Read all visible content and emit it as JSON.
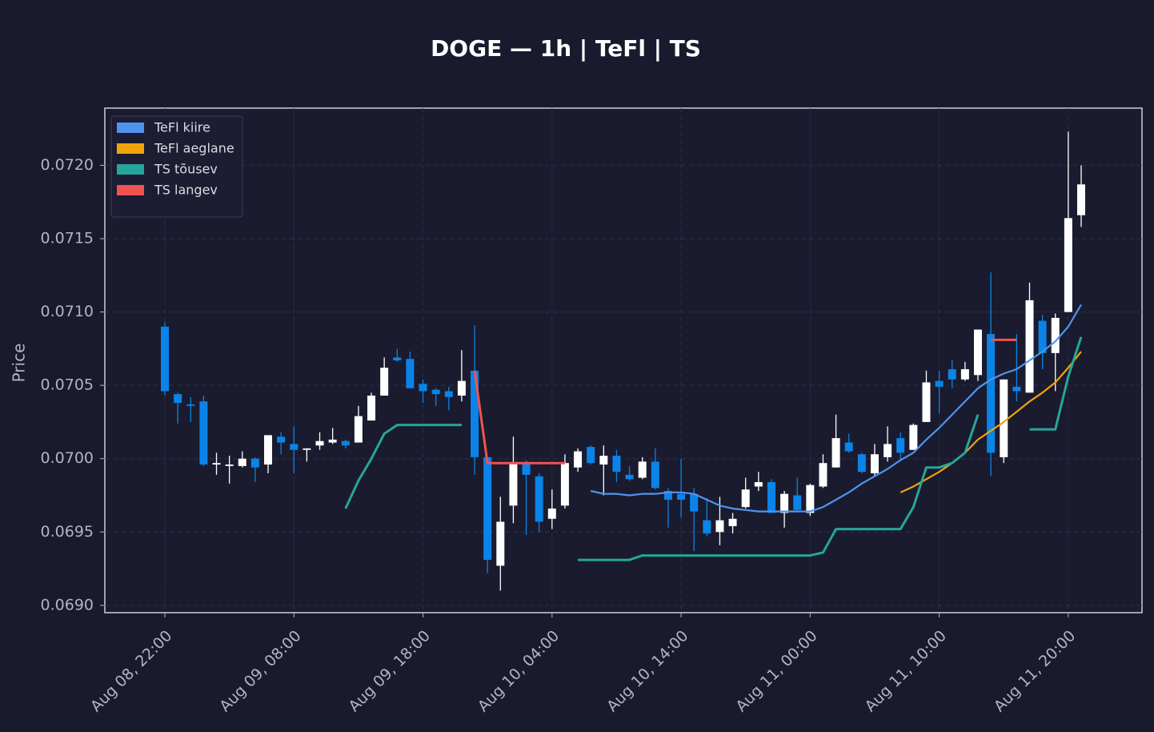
{
  "chart_data": {
    "type": "candlestick",
    "title": "DOGE — 1h  |  TeFl  |  TS",
    "y_label": "Price",
    "x": [
      "Aug 08, 22:00",
      "Aug 08, 23:00",
      "Aug 09, 00:00",
      "Aug 09, 01:00",
      "Aug 09, 02:00",
      "Aug 09, 03:00",
      "Aug 09, 04:00",
      "Aug 09, 05:00",
      "Aug 09, 06:00",
      "Aug 09, 07:00",
      "Aug 09, 08:00",
      "Aug 09, 09:00",
      "Aug 09, 10:00",
      "Aug 09, 11:00",
      "Aug 09, 12:00",
      "Aug 09, 13:00",
      "Aug 09, 14:00",
      "Aug 09, 15:00",
      "Aug 09, 16:00",
      "Aug 09, 17:00",
      "Aug 09, 18:00",
      "Aug 09, 19:00",
      "Aug 09, 20:00",
      "Aug 09, 21:00",
      "Aug 09, 22:00",
      "Aug 09, 23:00",
      "Aug 10, 00:00",
      "Aug 10, 01:00",
      "Aug 10, 02:00",
      "Aug 10, 03:00",
      "Aug 10, 04:00",
      "Aug 10, 05:00",
      "Aug 10, 06:00",
      "Aug 10, 07:00",
      "Aug 10, 08:00",
      "Aug 10, 09:00",
      "Aug 10, 10:00",
      "Aug 10, 11:00",
      "Aug 10, 12:00",
      "Aug 10, 13:00",
      "Aug 10, 14:00",
      "Aug 10, 15:00",
      "Aug 10, 16:00",
      "Aug 10, 17:00",
      "Aug 10, 18:00",
      "Aug 10, 19:00",
      "Aug 10, 20:00",
      "Aug 10, 21:00",
      "Aug 10, 22:00",
      "Aug 10, 23:00",
      "Aug 11, 00:00",
      "Aug 11, 01:00",
      "Aug 11, 02:00",
      "Aug 11, 03:00",
      "Aug 11, 04:00",
      "Aug 11, 05:00",
      "Aug 11, 06:00",
      "Aug 11, 07:00",
      "Aug 11, 08:00",
      "Aug 11, 09:00",
      "Aug 11, 10:00",
      "Aug 11, 11:00",
      "Aug 11, 12:00",
      "Aug 11, 13:00",
      "Aug 11, 14:00",
      "Aug 11, 15:00",
      "Aug 11, 16:00",
      "Aug 11, 17:00",
      "Aug 11, 18:00",
      "Aug 11, 19:00",
      "Aug 11, 20:00",
      "Aug 11, 21:00"
    ],
    "open": [
      0.0709,
      0.07044,
      0.07037,
      0.07039,
      0.06996,
      0.06995,
      0.06995,
      0.07,
      0.06996,
      0.07015,
      0.0701,
      0.07006,
      0.07009,
      0.07011,
      0.07012,
      0.07011,
      0.07026,
      0.07043,
      0.07069,
      0.07068,
      0.07051,
      0.07047,
      0.07046,
      0.07043,
      0.0706,
      0.07001,
      0.06927,
      0.06968,
      0.06997,
      0.06988,
      0.06959,
      0.06968,
      0.06994,
      0.07008,
      0.06996,
      0.07002,
      0.06989,
      0.06987,
      0.06998,
      0.06978,
      0.06976,
      0.06976,
      0.06958,
      0.0695,
      0.06954,
      0.06967,
      0.06981,
      0.06984,
      0.06963,
      0.06975,
      0.06963,
      0.06981,
      0.06994,
      0.07011,
      0.07003,
      0.0699,
      0.07001,
      0.07014,
      0.07006,
      0.07025,
      0.07053,
      0.07061,
      0.07054,
      0.07057,
      0.07085,
      0.07001,
      0.07049,
      0.07045,
      0.07094,
      0.07072,
      0.071,
      0.07166
    ],
    "high": [
      0.07093,
      0.07045,
      0.07042,
      0.07043,
      0.07004,
      0.07002,
      0.07005,
      0.07001,
      0.07016,
      0.07018,
      0.07022,
      0.07007,
      0.07018,
      0.07021,
      0.07013,
      0.07036,
      0.07045,
      0.07069,
      0.07075,
      0.07073,
      0.07054,
      0.07048,
      0.07049,
      0.07074,
      0.07091,
      0.07001,
      0.06974,
      0.07015,
      0.06999,
      0.0699,
      0.06979,
      0.07003,
      0.07007,
      0.07009,
      0.07009,
      0.07006,
      0.06995,
      0.07001,
      0.07007,
      0.0698,
      0.07,
      0.0698,
      0.06973,
      0.06974,
      0.06963,
      0.06987,
      0.06991,
      0.06986,
      0.06978,
      0.06987,
      0.06983,
      0.07003,
      0.0703,
      0.07017,
      0.07004,
      0.0701,
      0.07022,
      0.07018,
      0.07024,
      0.0706,
      0.0706,
      0.07067,
      0.07066,
      0.07088,
      0.07127,
      0.07054,
      0.07085,
      0.0712,
      0.07098,
      0.07099,
      0.07223,
      0.072
    ],
    "low": [
      0.07043,
      0.07024,
      0.07025,
      0.06995,
      0.06989,
      0.06983,
      0.06994,
      0.06984,
      0.0699,
      0.07003,
      0.0699,
      0.06998,
      0.07006,
      0.0701,
      0.07007,
      0.07011,
      0.07026,
      0.07043,
      0.07066,
      0.07048,
      0.07038,
      0.07036,
      0.07033,
      0.07039,
      0.06989,
      0.06922,
      0.0691,
      0.06956,
      0.06948,
      0.0695,
      0.06952,
      0.06966,
      0.06991,
      0.06996,
      0.06975,
      0.06984,
      0.06985,
      0.06986,
      0.06979,
      0.06953,
      0.0696,
      0.06937,
      0.06947,
      0.06941,
      0.06949,
      0.06966,
      0.06978,
      0.06963,
      0.06953,
      0.06964,
      0.06961,
      0.0698,
      0.06994,
      0.07004,
      0.0699,
      0.06988,
      0.06998,
      0.06999,
      0.07006,
      0.07025,
      0.07031,
      0.07048,
      0.07053,
      0.07053,
      0.06988,
      0.06997,
      0.07039,
      0.07045,
      0.07061,
      0.07046,
      0.071,
      0.07158
    ],
    "close": [
      0.07046,
      0.07038,
      0.07036,
      0.06996,
      0.06997,
      0.06996,
      0.07,
      0.06994,
      0.07016,
      0.07011,
      0.07006,
      0.07007,
      0.07012,
      0.07013,
      0.07009,
      0.07029,
      0.07043,
      0.07062,
      0.07067,
      0.07048,
      0.07046,
      0.07044,
      0.07042,
      0.07053,
      0.07001,
      0.06931,
      0.06957,
      0.06997,
      0.06989,
      0.06957,
      0.06966,
      0.06997,
      0.07005,
      0.06997,
      0.07002,
      0.06991,
      0.06986,
      0.06998,
      0.0698,
      0.06972,
      0.06972,
      0.06964,
      0.06949,
      0.06958,
      0.06959,
      0.06979,
      0.06984,
      0.06963,
      0.06976,
      0.06965,
      0.06982,
      0.06997,
      0.07014,
      0.07005,
      0.06991,
      0.07003,
      0.0701,
      0.07004,
      0.07023,
      0.07052,
      0.07049,
      0.07054,
      0.07061,
      0.07088,
      0.07004,
      0.07054,
      0.07046,
      0.07108,
      0.07072,
      0.07096,
      0.07164,
      0.07187
    ],
    "up_color": "#ffffff",
    "down_color": "#0a84e8",
    "series": [
      {
        "name": "TeFl kiire",
        "color": "#4f94ef",
        "values": [
          null,
          null,
          null,
          null,
          null,
          null,
          null,
          null,
          null,
          null,
          null,
          null,
          null,
          null,
          null,
          null,
          null,
          null,
          null,
          null,
          null,
          null,
          null,
          null,
          null,
          null,
          null,
          null,
          null,
          null,
          null,
          null,
          null,
          0.06978,
          0.06976,
          0.06976,
          0.06975,
          0.06976,
          0.06976,
          0.06977,
          0.06977,
          0.06976,
          0.06972,
          0.06968,
          0.06966,
          0.06965,
          0.06964,
          0.06964,
          0.06964,
          0.06964,
          0.06964,
          0.06967,
          0.06972,
          0.06977,
          0.06983,
          0.06988,
          0.06993,
          0.06999,
          0.07004,
          0.07013,
          0.07021,
          0.0703,
          0.07039,
          0.07048,
          0.07054,
          0.07058,
          0.07061,
          0.07067,
          0.07073,
          0.0708,
          0.0709,
          0.07105
        ]
      },
      {
        "name": "TeFl aeglane",
        "color": "#f0a30a",
        "values": [
          null,
          null,
          null,
          null,
          null,
          null,
          null,
          null,
          null,
          null,
          null,
          null,
          null,
          null,
          null,
          null,
          null,
          null,
          null,
          null,
          null,
          null,
          null,
          null,
          null,
          null,
          null,
          null,
          null,
          null,
          null,
          null,
          null,
          null,
          null,
          null,
          null,
          null,
          null,
          null,
          null,
          null,
          null,
          null,
          null,
          null,
          null,
          null,
          null,
          null,
          null,
          null,
          null,
          null,
          null,
          null,
          null,
          0.06977,
          0.06981,
          0.06986,
          0.06991,
          0.06997,
          0.07004,
          0.07013,
          0.07019,
          0.07025,
          0.07032,
          0.07039,
          0.07045,
          0.07052,
          0.07062,
          0.07073
        ]
      },
      {
        "name": "TS tõusev",
        "color": "#26a69a",
        "values": [
          null,
          null,
          null,
          null,
          null,
          null,
          null,
          null,
          null,
          null,
          null,
          null,
          null,
          null,
          0.06966,
          0.06985,
          0.07,
          0.07017,
          0.07023,
          0.07023,
          0.07023,
          0.07023,
          0.07023,
          0.07023,
          null,
          null,
          null,
          null,
          null,
          null,
          null,
          null,
          0.06931,
          0.06931,
          0.06931,
          0.06931,
          0.06931,
          0.06934,
          0.06934,
          0.06934,
          0.06934,
          0.06934,
          0.06934,
          0.06934,
          0.06934,
          0.06934,
          0.06934,
          0.06934,
          0.06934,
          0.06934,
          0.06934,
          0.06936,
          0.06952,
          0.06952,
          0.06952,
          0.06952,
          0.06952,
          0.06952,
          0.06967,
          0.06994,
          0.06994,
          0.06997,
          0.07004,
          0.0703,
          null,
          null,
          null,
          0.0702,
          0.0702,
          0.0702,
          0.07056,
          0.07083
        ]
      },
      {
        "name": "TS langev",
        "color": "#ef5350",
        "values": [
          null,
          null,
          null,
          null,
          null,
          null,
          null,
          null,
          null,
          null,
          null,
          null,
          null,
          null,
          null,
          null,
          null,
          null,
          null,
          null,
          null,
          null,
          null,
          null,
          0.0706,
          0.06997,
          0.06997,
          0.06997,
          0.06997,
          0.06997,
          0.06997,
          0.06997,
          null,
          null,
          null,
          null,
          null,
          null,
          null,
          null,
          null,
          null,
          null,
          null,
          null,
          null,
          null,
          null,
          null,
          null,
          null,
          null,
          null,
          null,
          null,
          null,
          null,
          null,
          null,
          null,
          null,
          null,
          null,
          null,
          0.07081,
          0.07081,
          0.07081,
          null,
          null,
          null,
          null,
          null
        ]
      }
    ],
    "xticks": [
      "Aug 08, 22:00",
      "Aug 09, 08:00",
      "Aug 09, 18:00",
      "Aug 10, 04:00",
      "Aug 10, 14:00",
      "Aug 11, 00:00",
      "Aug 11, 10:00",
      "Aug 11, 20:00"
    ],
    "ylim": [
      0.06895,
      0.07239
    ],
    "yticks": [
      {
        "value": 0.069,
        "label": "0.0690"
      },
      0.0695,
      {
        "value": 0.07,
        "label": "0.0700"
      },
      0.0705,
      {
        "value": 0.071,
        "label": "0.0710"
      },
      0.0715,
      {
        "value": 0.072,
        "label": "0.0720"
      }
    ],
    "grid": true,
    "legend": "upper left"
  }
}
